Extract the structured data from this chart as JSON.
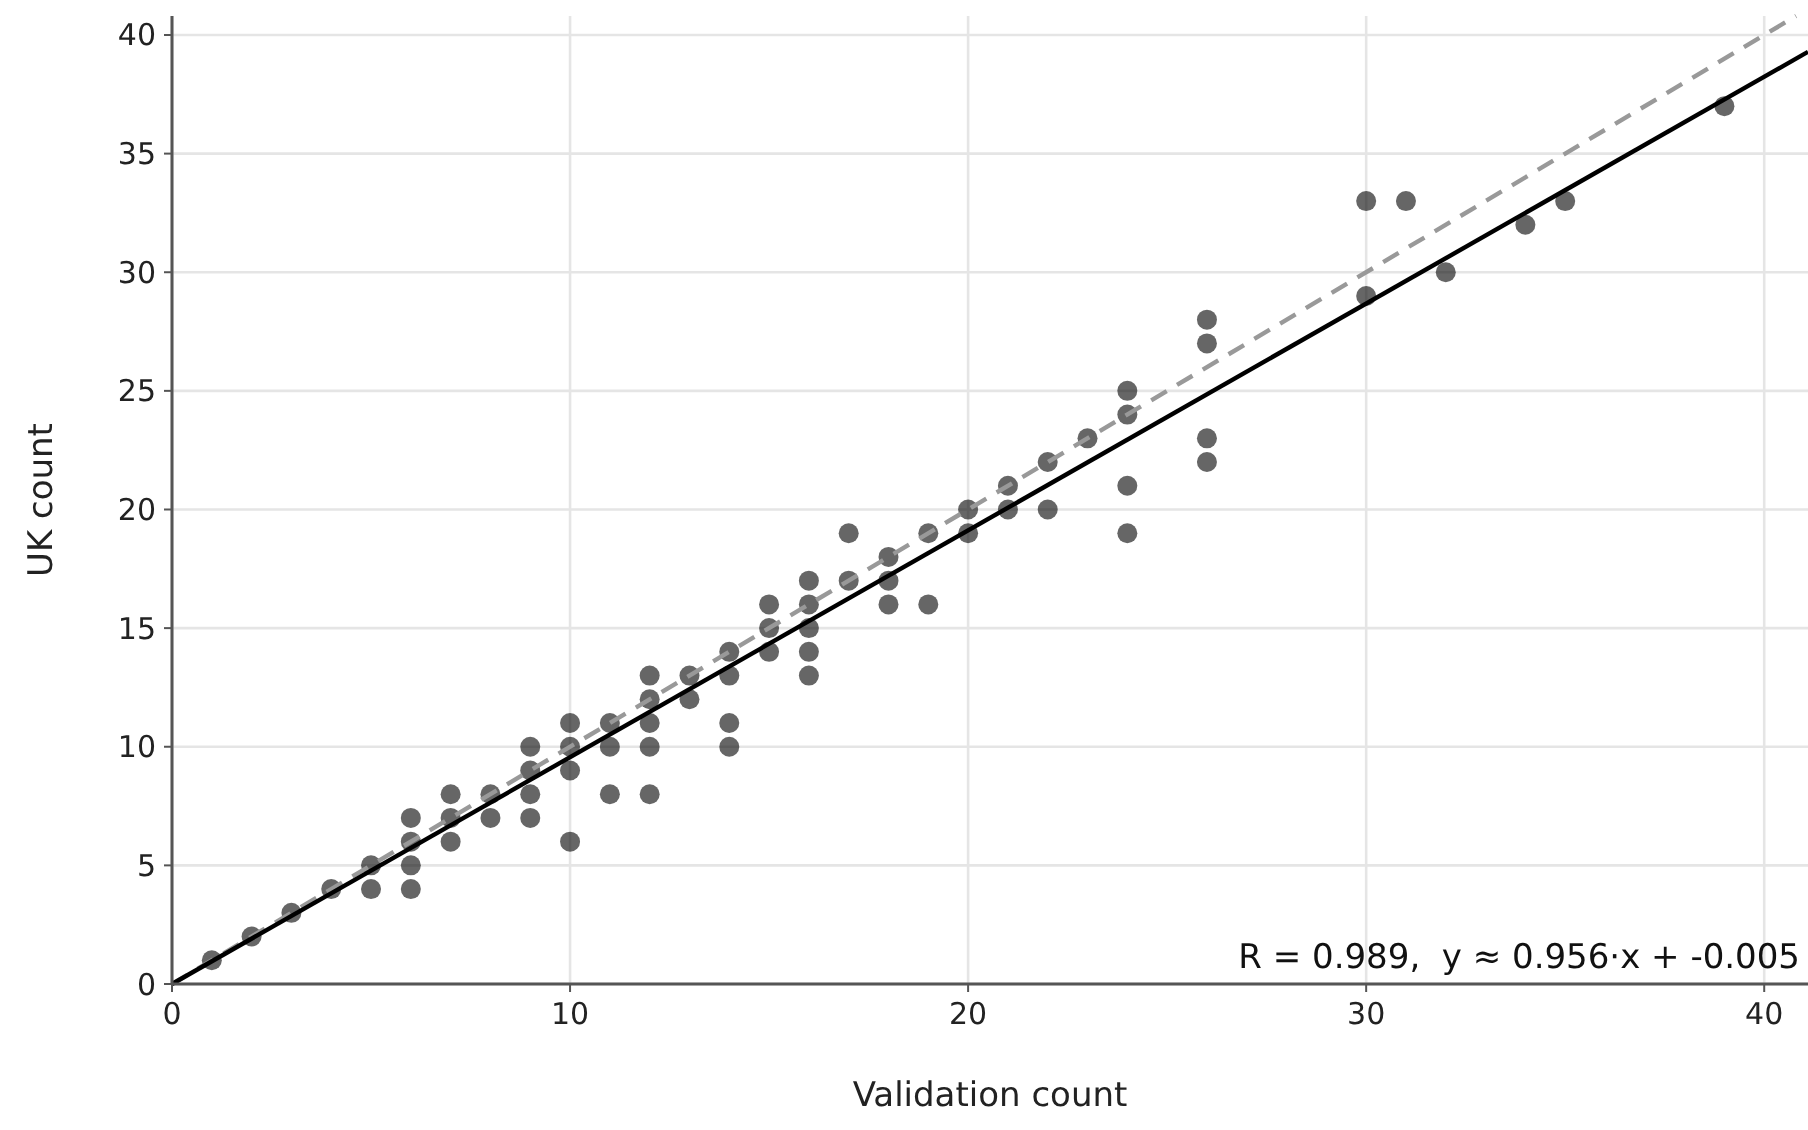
{
  "chart_data": {
    "type": "scatter",
    "xlabel": "Validation count",
    "ylabel": "UK count",
    "annotations": [
      "R = 0.989,  y ≈ 0.956·x + -0.005"
    ],
    "xlim": [
      0,
      41.1
    ],
    "ylim": [
      0,
      40.8
    ],
    "xticks": [
      0,
      10,
      20,
      30,
      40
    ],
    "yticks": [
      0,
      5,
      10,
      15,
      20,
      25,
      30,
      35,
      40
    ],
    "grid": true,
    "series": [
      {
        "marker": "circle",
        "color": "#666666",
        "x": [
          1,
          2,
          3,
          4,
          5,
          5,
          6,
          6,
          6,
          6,
          7,
          7,
          7,
          8,
          8,
          9,
          9,
          9,
          9,
          10,
          10,
          10,
          10,
          11,
          11,
          11,
          12,
          12,
          12,
          12,
          12,
          13,
          13,
          14,
          14,
          14,
          14,
          15,
          15,
          15,
          16,
          16,
          16,
          16,
          16,
          17,
          17,
          18,
          18,
          18,
          19,
          19,
          20,
          20,
          21,
          21,
          22,
          22,
          23,
          24,
          24,
          24,
          24,
          26,
          26,
          26,
          26,
          30,
          30,
          31,
          32,
          34,
          35,
          39
        ],
        "values": [
          1,
          2,
          3,
          4,
          4,
          5,
          4,
          5,
          6,
          7,
          6,
          7,
          8,
          7,
          8,
          7,
          8,
          9,
          10,
          6,
          9,
          10,
          11,
          8,
          10,
          11,
          8,
          10,
          11,
          12,
          13,
          12,
          13,
          10,
          11,
          13,
          14,
          14,
          15,
          16,
          13,
          14,
          15,
          16,
          17,
          17,
          19,
          16,
          17,
          18,
          16,
          19,
          19,
          20,
          20,
          21,
          20,
          22,
          23,
          19,
          21,
          24,
          25,
          22,
          23,
          27,
          28,
          29,
          33,
          33,
          30,
          32,
          33,
          37
        ]
      },
      {
        "type": "line",
        "color": "#999999",
        "line_style": "dashed",
        "marker": "none",
        "x": [
          0,
          40.8
        ],
        "values": [
          0,
          40.8
        ]
      },
      {
        "type": "line",
        "color": "#000000",
        "line_style": "solid",
        "marker": "none",
        "x": [
          0,
          41.1
        ],
        "values": [
          0,
          39.29
        ]
      }
    ]
  }
}
